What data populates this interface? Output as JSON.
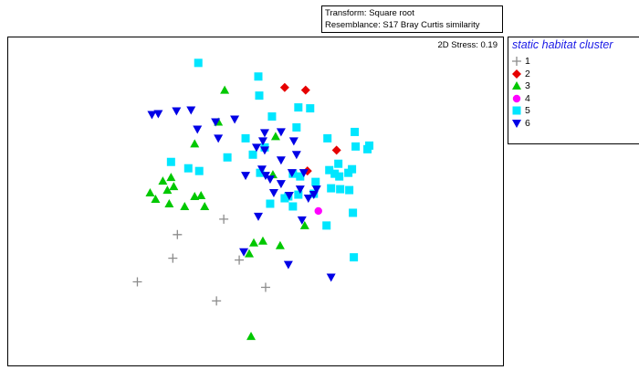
{
  "info_box": {
    "transform": "Transform: Square root",
    "resemblance": "Resemblance: S17 Bray Curtis similarity"
  },
  "stress_label": "2D Stress: 0.19",
  "legend_title": "static habitat cluster",
  "legend_items": [
    {
      "label": "1",
      "marker": "plus",
      "color": "#8c8c8c"
    },
    {
      "label": "2",
      "marker": "diamond",
      "color": "#e60000"
    },
    {
      "label": "3",
      "marker": "triangle-up",
      "color": "#00c800"
    },
    {
      "label": "4",
      "marker": "circle",
      "color": "#ff00ff"
    },
    {
      "label": "5",
      "marker": "square",
      "color": "#00e6ff"
    },
    {
      "label": "6",
      "marker": "triangle-down",
      "color": "#0000e6"
    }
  ],
  "chart_data": {
    "type": "scatter",
    "title": "",
    "xlabel": "",
    "ylabel": "",
    "axes_visible": false,
    "xlim": [
      0,
      544
    ],
    "ylim": [
      0,
      361
    ],
    "grid": false,
    "legend_position": "right",
    "series": [
      {
        "name": "1",
        "points": [
          [
            186,
            217
          ],
          [
            237,
            200
          ],
          [
            181,
            243
          ],
          [
            142,
            269
          ],
          [
            254,
            245
          ],
          [
            283,
            275
          ],
          [
            229,
            290
          ]
        ]
      },
      {
        "name": "2",
        "points": [
          [
            304,
            55
          ],
          [
            327,
            58
          ],
          [
            361,
            124
          ],
          [
            329,
            147
          ]
        ]
      },
      {
        "name": "3",
        "points": [
          [
            238,
            58
          ],
          [
            231,
            93
          ],
          [
            205,
            117
          ],
          [
            294,
            109
          ],
          [
            179,
            154
          ],
          [
            170,
            158
          ],
          [
            156,
            171
          ],
          [
            175,
            168
          ],
          [
            182,
            164
          ],
          [
            162,
            178
          ],
          [
            212,
            174
          ],
          [
            177,
            183
          ],
          [
            205,
            175
          ],
          [
            194,
            186
          ],
          [
            216,
            186
          ],
          [
            291,
            151
          ],
          [
            270,
            226
          ],
          [
            265,
            238
          ],
          [
            280,
            224
          ],
          [
            299,
            229
          ],
          [
            326,
            207
          ],
          [
            267,
            329
          ]
        ]
      },
      {
        "name": "4",
        "points": [
          [
            341,
            191
          ]
        ]
      },
      {
        "name": "5",
        "points": [
          [
            209,
            28
          ],
          [
            275,
            43
          ],
          [
            276,
            64
          ],
          [
            319,
            77
          ],
          [
            332,
            78
          ],
          [
            290,
            87
          ],
          [
            317,
            99
          ],
          [
            261,
            111
          ],
          [
            282,
            121
          ],
          [
            351,
            111
          ],
          [
            381,
            104
          ],
          [
            395,
            123
          ],
          [
            382,
            120
          ],
          [
            397,
            119
          ],
          [
            269,
            129
          ],
          [
            241,
            132
          ],
          [
            198,
            144
          ],
          [
            179,
            137
          ],
          [
            210,
            147
          ],
          [
            277,
            149
          ],
          [
            313,
            150
          ],
          [
            321,
            153
          ],
          [
            353,
            146
          ],
          [
            359,
            150
          ],
          [
            363,
            139
          ],
          [
            364,
            153
          ],
          [
            374,
            149
          ],
          [
            378,
            145
          ],
          [
            308,
            175
          ],
          [
            319,
            173
          ],
          [
            336,
            172
          ],
          [
            355,
            166
          ],
          [
            365,
            167
          ],
          [
            375,
            168
          ],
          [
            288,
            183
          ],
          [
            304,
            177
          ],
          [
            313,
            186
          ],
          [
            338,
            159
          ],
          [
            350,
            207
          ],
          [
            379,
            193
          ],
          [
            380,
            242
          ]
        ]
      },
      {
        "name": "6",
        "points": [
          [
            158,
            85
          ],
          [
            165,
            84
          ],
          [
            185,
            81
          ],
          [
            201,
            80
          ],
          [
            228,
            93
          ],
          [
            249,
            90
          ],
          [
            208,
            101
          ],
          [
            231,
            111
          ],
          [
            282,
            105
          ],
          [
            300,
            104
          ],
          [
            280,
            114
          ],
          [
            314,
            114
          ],
          [
            273,
            121
          ],
          [
            282,
            124
          ],
          [
            279,
            145
          ],
          [
            317,
            129
          ],
          [
            300,
            135
          ],
          [
            261,
            152
          ],
          [
            283,
            152
          ],
          [
            312,
            149
          ],
          [
            325,
            149
          ],
          [
            288,
            156
          ],
          [
            300,
            161
          ],
          [
            321,
            167
          ],
          [
            339,
            167
          ],
          [
            292,
            171
          ],
          [
            309,
            174
          ],
          [
            330,
            177
          ],
          [
            336,
            173
          ],
          [
            275,
            197
          ],
          [
            323,
            201
          ],
          [
            259,
            236
          ],
          [
            308,
            250
          ],
          [
            355,
            264
          ]
        ]
      }
    ]
  }
}
